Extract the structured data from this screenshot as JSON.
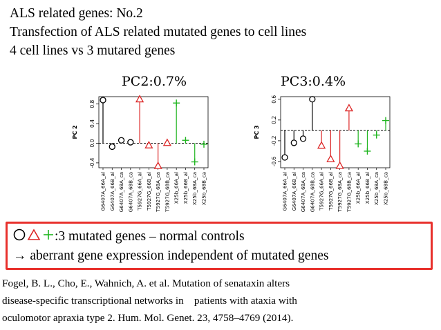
{
  "header": {
    "line1": "ALS related genes: No.2",
    "line2": "Transfection of ALS related mutated genes to cell lines",
    "line3": "4 cell lines vs 3 mutared genes"
  },
  "colors": {
    "group_a": "#000000",
    "group_b": "#dc2626",
    "group_c": "#1fb51f",
    "box_border": "#e8302c"
  },
  "chart_data": [
    {
      "type": "scatter",
      "style": "lollipop",
      "title": "PC2:0.7%",
      "ylabel": "PC 2",
      "ylim": [
        -0.5,
        0.95
      ],
      "yticks": [
        -0.4,
        0.0,
        0.4,
        0.8
      ],
      "ytick_labels": [
        "-0.4",
        "0.0",
        "0.4",
        "0.8"
      ],
      "grid": false,
      "categories": [
        "G6407A_66A_al",
        "G6407A_66B_al",
        "G6407A_68A_ca",
        "G6407A_68B_ca",
        "T5927G_66A_al",
        "T5927G_66B_al",
        "T5927G_68A_ca",
        "T5927G_68B_ca",
        "X25b_66A_al",
        "X25b_66B_al",
        "X25b_68A_ca",
        "X25b_68B_ca"
      ],
      "series": [
        {
          "marker": "circle",
          "color": "#000000",
          "values": [
            0.88,
            -0.07,
            0.06,
            0.02
          ]
        },
        {
          "marker": "triangle",
          "color": "#dc2626",
          "values": [
            0.9,
            -0.04,
            -0.46,
            0.01
          ]
        },
        {
          "marker": "plus",
          "color": "#1fb51f",
          "values": [
            0.82,
            0.06,
            -0.38,
            -0.02
          ]
        }
      ]
    },
    {
      "type": "scatter",
      "style": "lollipop",
      "title": "PC3:0.4%",
      "ylabel": "PC 3",
      "ylim": [
        -0.72,
        0.65
      ],
      "yticks": [
        -0.6,
        -0.2,
        0.2,
        0.6
      ],
      "ytick_labels": [
        "-0.6",
        "-0.2",
        "0.2",
        "0.6"
      ],
      "grid": false,
      "categories": [
        "G6407A_66A_al",
        "G6407A_66B_al",
        "G6407A_68A_ca",
        "G6407A_68B_ca",
        "T5927G_66A_al",
        "T5927G_66B_al",
        "T5927G_68A_ca",
        "T5927G_68B_ca",
        "X25b_66A_al",
        "X25b_66B_al",
        "X25b_68A_ca",
        "X25b_68B_ca"
      ],
      "series": [
        {
          "marker": "circle",
          "color": "#000000",
          "values": [
            -0.52,
            -0.24,
            -0.16,
            0.6
          ]
        },
        {
          "marker": "triangle",
          "color": "#dc2626",
          "values": [
            -0.29,
            -0.55,
            -0.68,
            0.43
          ]
        },
        {
          "marker": "plus",
          "color": "#1fb51f",
          "values": [
            -0.26,
            -0.4,
            -0.09,
            0.19
          ]
        }
      ]
    }
  ],
  "note": {
    "symbols_suffix": ":3 mutated genes – normal controls",
    "line2": "→ aberrant gene expression independent of mutated genes"
  },
  "citation": {
    "line1": "Fogel, B. L., Cho, E., Wahnich, A. et al. Mutation of senataxin alters",
    "line2": "disease-specific transcriptional networks in　patients with ataxia with",
    "line3": "oculomotor apraxia type 2. Hum. Mol. Genet. 23, 4758–4769 (2014)."
  }
}
